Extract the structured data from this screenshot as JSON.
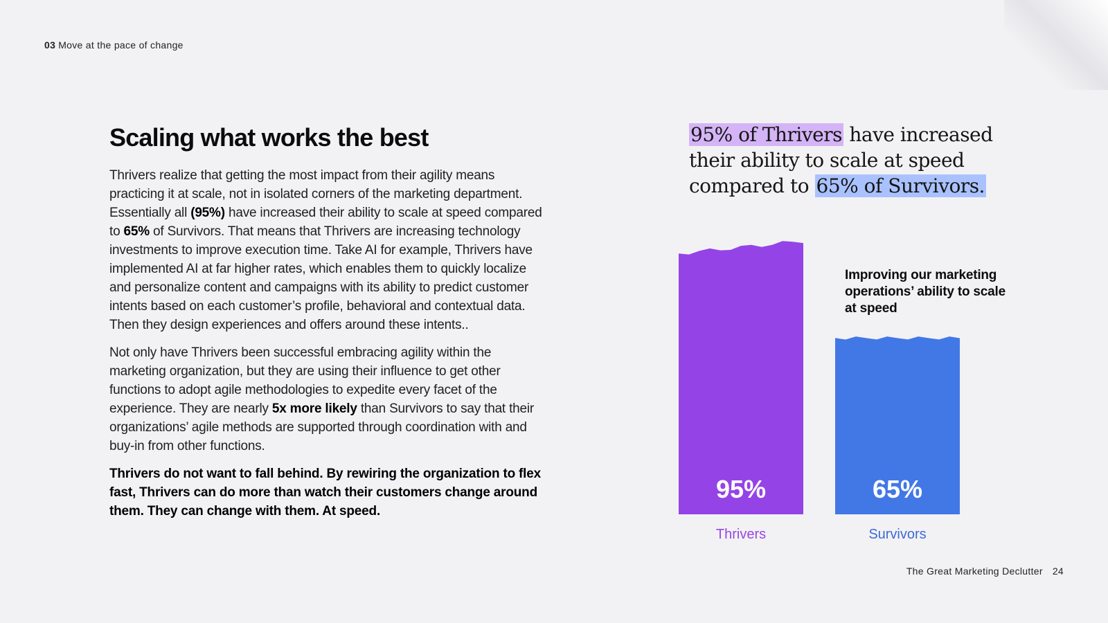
{
  "header": {
    "section_number": "03",
    "section_title": "Move at the pace of change"
  },
  "main": {
    "title": "Scaling what works the best",
    "paragraph1": {
      "text_a": "Thrivers realize that getting the most impact from their agility means practicing it at scale, not in isolated corners of the marketing department. Essentially all ",
      "bold_a": "(95%)",
      "text_b": " have increased their ability to scale at speed compared to ",
      "bold_b": "65%",
      "text_c": " of Survivors. That means that Thrivers are increasing technology investments to improve execution time. Take AI for example, Thrivers have implemented AI at far higher rates, which enables them to quickly localize and personalize content and campaigns with its ability to predict customer intents based on each customer’s profile, behavioral and contextual data. Then they design experiences and offers around these intents.."
    },
    "paragraph2": {
      "text_a": "Not only have Thrivers been successful embracing agility within the marketing organization, but they are using their influence to get other functions to adopt agile methodologies to expedite every facet of the experience. They are nearly ",
      "bold_a": "5x more likely",
      "text_b": " than Survivors to say that their organizations’ agile methods are supported through coordination with and buy-in from other functions."
    },
    "paragraph3": "Thrivers do not want to fall behind. By rewiring the organization to flex fast, Thrivers can do more than watch their customers change around them. They can change with them. At speed."
  },
  "callout": {
    "highlight1": "95% of Thrivers",
    "text1": " have increased their ability to scale at speed compared to ",
    "highlight2": "65% of Survivors."
  },
  "chart_data": {
    "type": "bar",
    "title": "Improving our marketing operations’ ability to scale at speed",
    "categories": [
      "Thrivers",
      "Survivors"
    ],
    "values": [
      95,
      65
    ],
    "value_labels": [
      "95%",
      "65%"
    ],
    "colors": [
      "#9444e6",
      "#4277e6"
    ],
    "label_colors": [
      "#9a47e0",
      "#3d6ad6"
    ],
    "ylim": [
      0,
      100
    ],
    "grid": false
  },
  "footer": {
    "doc_title": "The Great Marketing Declutter",
    "page_number": "24"
  }
}
